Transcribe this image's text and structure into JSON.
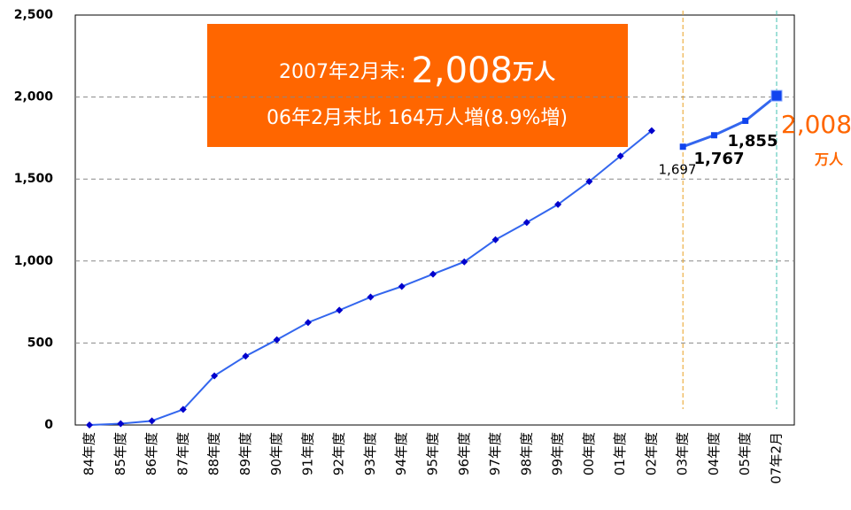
{
  "chart_data": {
    "type": "line",
    "categories": [
      "84年度",
      "85年度",
      "86年度",
      "87年度",
      "88年度",
      "89年度",
      "90年度",
      "91年度",
      "92年度",
      "93年度",
      "94年度",
      "95年度",
      "96年度",
      "97年度",
      "98年度",
      "99年度",
      "00年度",
      "01年度",
      "02年度",
      "03年度",
      "04年度",
      "05年度",
      "07年2月"
    ],
    "series": [
      {
        "color": "#3366ee",
        "values": [
          0,
          8,
          25,
          95,
          300,
          420,
          520,
          625,
          700,
          780,
          845,
          920,
          995,
          1130,
          1235,
          1345,
          1485,
          1640,
          1795,
          null,
          null,
          null,
          null
        ]
      },
      {
        "color": "#3366ee",
        "values": [
          null,
          null,
          null,
          null,
          null,
          null,
          null,
          null,
          null,
          null,
          null,
          null,
          null,
          null,
          null,
          null,
          null,
          null,
          null,
          1697,
          1767,
          1855,
          2008
        ],
        "value_labels": [
          null,
          null,
          null,
          null,
          null,
          null,
          null,
          null,
          null,
          null,
          null,
          null,
          null,
          null,
          null,
          null,
          null,
          null,
          null,
          "1,697",
          "1,767",
          "1,855",
          "2,008"
        ]
      }
    ],
    "annotations": [
      "2007年2月末:",
      "2,008",
      "万人",
      "06年2月末比 164万人増(8.9%増)",
      "万人"
    ],
    "ylim": [
      0,
      2500
    ],
    "yticks": [
      0,
      {
        "value": 500,
        "label": "500"
      },
      {
        "value": 1000,
        "label": "1,000"
      },
      {
        "value": 1500,
        "label": "1,500"
      },
      {
        "value": 2000,
        "label": "2,000"
      },
      {
        "value": 2500,
        "label": "2,500"
      }
    ],
    "grid": true
  }
}
